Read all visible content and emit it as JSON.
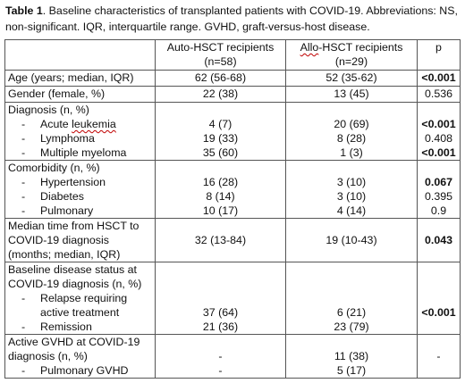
{
  "caption": {
    "label": "Table 1",
    "text": ". Baseline characteristics of transplanted patients with COVID-19. Abbreviations: NS, non-significant. IQR, interquartile range. GVHD, graft-versus-host disease."
  },
  "header": {
    "auto_line1": "Auto-HSCT recipients",
    "auto_line2": "(n=58)",
    "allo_prefix": "Allo",
    "allo_rest": "-HSCT recipients",
    "allo_line2": "(n=29)",
    "p": "p"
  },
  "rows": {
    "age": {
      "label": "Age (years; median, IQR)",
      "auto": "62 (56-68)",
      "allo": "52 (35-62)",
      "p": "<0.001"
    },
    "gender": {
      "label": "Gender (female, %)",
      "auto": "22 (38)",
      "allo": "13 (45)",
      "p": "0.536"
    },
    "diagnosis": {
      "label": "Diagnosis (n, %)",
      "acute_prefix": "Acute ",
      "acute_word": "leukemia",
      "acute": {
        "auto": "4 (7)",
        "allo": "20 (69)",
        "p": "<0.001"
      },
      "lymphoma": {
        "label": "Lymphoma",
        "auto": "19 (33)",
        "allo": "8 (28)",
        "p": "0.408"
      },
      "myeloma": {
        "label": "Multiple myeloma",
        "auto": "35 (60)",
        "allo": "1 (3)",
        "p": "<0.001"
      }
    },
    "comorbidity": {
      "label": "Comorbidity (n, %)",
      "hypertension": {
        "label": "Hypertension",
        "auto": "16 (28)",
        "allo": "3 (10)",
        "p": "0.067"
      },
      "diabetes": {
        "label": "Diabetes",
        "auto": "8 (14)",
        "allo": "3 (10)",
        "p": "0.395"
      },
      "pulmonary": {
        "label": "Pulmonary",
        "auto": "10 (17)",
        "allo": "4 (14)",
        "p": "0.9"
      }
    },
    "median_time": {
      "line1": "Median time from HSCT to",
      "line2": "COVID-19 diagnosis",
      "line3": "(months; median, IQR)",
      "auto": "32 (13-84)",
      "allo": "19 (10-43)",
      "p": "0.043"
    },
    "baseline": {
      "line1": "Baseline disease status at",
      "line2": "COVID-19 diagnosis (n, %)",
      "relapse_line1": "Relapse requiring",
      "relapse_line2": "active treatment",
      "relapse": {
        "auto": "37 (64)",
        "allo": "6 (21)",
        "p": "<0.001"
      },
      "remission": {
        "label": "Remission",
        "auto": "21 (36)",
        "allo": "23 (79)"
      }
    },
    "gvhd": {
      "line1": "Active GVHD at COVID-19",
      "line2": "diagnosis (n, %)",
      "main": {
        "auto": "-",
        "allo": "11 (38)",
        "p": "-"
      },
      "pulmonary": {
        "label": "Pulmonary GVHD",
        "auto": "-",
        "allo": "5 (17)"
      }
    }
  },
  "dash": "-"
}
